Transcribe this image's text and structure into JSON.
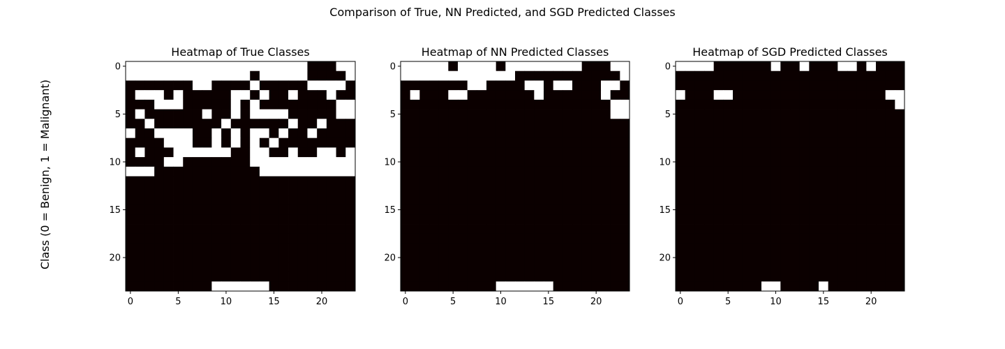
{
  "figure": {
    "suptitle": "Comparison of True, NN Predicted, and SGD Predicted Classes",
    "ylabel": "Class (0 = Benign, 1 = Malignant)"
  },
  "colors": {
    "class_0": "#ffffff",
    "class_1": "#0b0000",
    "axis": "#000000"
  },
  "chart_data": [
    {
      "type": "heatmap",
      "title": "Heatmap of True Classes",
      "xlabel": "",
      "ylabel": "Class (0 = Benign, 1 = Malignant)",
      "xlim": [
        -0.5,
        23.5
      ],
      "ylim": [
        23.5,
        -0.5
      ],
      "xticks": [
        0,
        5,
        10,
        15,
        20
      ],
      "yticks": [
        0,
        5,
        10,
        15,
        20
      ],
      "colormap": "hot",
      "grid": false,
      "values": [
        "000000000000000000011100",
        "000000000000010000011110",
        "111111100111101111100001",
        "100010111110010110111011",
        "111000111110101111111100",
        "101111110110100001111100",
        "110111111101111110110111",
        "011000011010100101101111",
        "111100011010101011111111",
        "101110000001100110110010",
        "111100111111100000000000",
        "000111111111110000000000",
        "111111111111111111111111",
        "111111111111111111111111",
        "111111111111111111111111",
        "111111111111111111111111",
        "111111111111111111111111",
        "111111111111111111111111",
        "111111111111111111111111",
        "111111111111111111111111",
        "111111111111111111111111",
        "111111111111111111111111",
        "111111111111111111111111",
        "111111111000000111111111"
      ]
    },
    {
      "type": "heatmap",
      "title": "Heatmap of NN Predicted Classes",
      "xlabel": "",
      "ylabel": "",
      "xlim": [
        -0.5,
        23.5
      ],
      "ylim": [
        23.5,
        -0.5
      ],
      "xticks": [
        0,
        5,
        10,
        15,
        20
      ],
      "yticks": [
        0,
        5,
        10,
        15,
        20
      ],
      "colormap": "hot",
      "grid": false,
      "values": [
        "000001000010000000011100",
        "000000000000111111111110",
        "111111100111100100111001",
        "101110011111110111111011",
        "111111111111111111111100",
        "111111111111111111111100",
        "111111111111111111111111",
        "111111111111111111111111",
        "111111111111111111111111",
        "111111111111111111111111",
        "111111111111111111111111",
        "111111111111111111111111",
        "111111111111111111111111",
        "111111111111111111111111",
        "111111111111111111111111",
        "111111111111111111111111",
        "111111111111111111111111",
        "111111111111111111111111",
        "111111111111111111111111",
        "111111111111111111111111",
        "111111111111111111111111",
        "111111111111111111111111",
        "111111111111111111111111",
        "111111111100000011111111"
      ]
    },
    {
      "type": "heatmap",
      "title": "Heatmap of SGD Predicted Classes",
      "xlabel": "",
      "ylabel": "",
      "xlim": [
        -0.5,
        23.5
      ],
      "ylim": [
        23.5,
        -0.5
      ],
      "xticks": [
        0,
        5,
        10,
        15,
        20
      ],
      "yticks": [
        0,
        5,
        10,
        15,
        20
      ],
      "colormap": "hot",
      "grid": false,
      "values": [
        "000011111101101110010111",
        "111111111111111111111111",
        "111111111111111111111111",
        "011100111111111111111100",
        "111111111111111111111110",
        "111111111111111111111111",
        "111111111111111111111111",
        "111111111111111111111111",
        "111111111111111111111111",
        "111111111111111111111111",
        "111111111111111111111111",
        "111111111111111111111111",
        "111111111111111111111111",
        "111111111111111111111111",
        "111111111111111111111111",
        "111111111111111111111111",
        "111111111111111111111111",
        "111111111111111111111111",
        "111111111111111111111111",
        "111111111111111111111111",
        "111111111111111111111111",
        "111111111111111111111111",
        "111111111111111111111111",
        "111111111001111011111111"
      ]
    }
  ]
}
